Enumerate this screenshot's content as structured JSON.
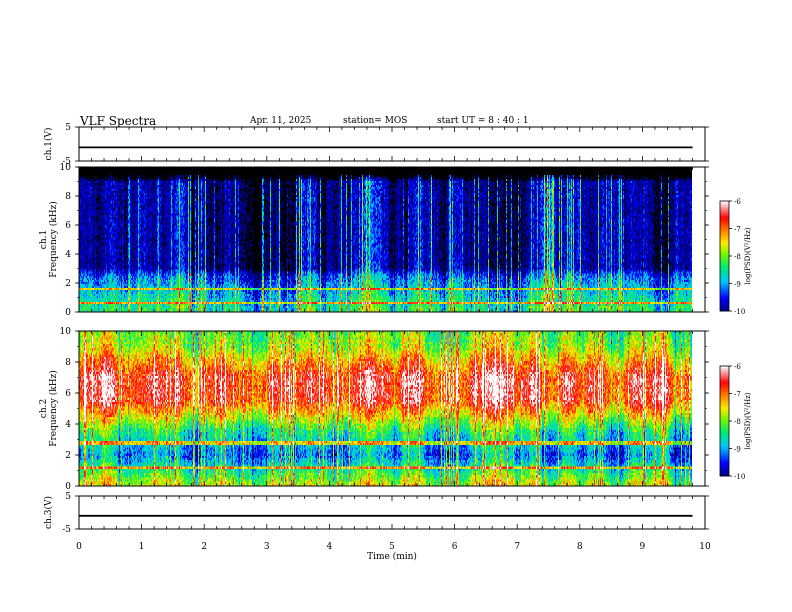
{
  "header": {
    "title": "VLF Spectra",
    "date": "Apr. 11, 2025",
    "station": "station= MOS",
    "start": "start  UT =   8 : 40 : 1"
  },
  "chart_data": [
    {
      "type": "line",
      "panel": "ch1-voltage",
      "ylabel": "ch.1(V)",
      "ylim": [
        -5,
        5
      ],
      "yticks": [
        "5",
        "-5"
      ],
      "x": [
        0,
        9.8
      ],
      "values": [
        -1,
        -1
      ],
      "color": "#000000"
    },
    {
      "type": "heatmap",
      "panel": "ch1-spectrogram",
      "ylabel": "ch.1\nFrequency (kHz)",
      "ylim": [
        0,
        10
      ],
      "yticks": [
        "0",
        "2",
        "4",
        "6",
        "8",
        "10"
      ],
      "xlim": [
        0,
        10
      ],
      "data_end_min": 9.8,
      "colorbar": {
        "label": "log(PSD)(V²/Hz)",
        "range": [
          -10,
          -6
        ],
        "ticks": [
          "-6",
          "-7",
          "-8",
          "-9",
          "-10"
        ]
      },
      "profile": {
        "base": [
          [
            0,
            -8.4
          ],
          [
            0.7,
            -8.6
          ],
          [
            2.5,
            -9.3
          ],
          [
            3.0,
            -10
          ],
          [
            9,
            -10
          ],
          [
            9.3,
            -11
          ]
        ],
        "flat_lines_khz": [
          0.6,
          1.6
        ]
      }
    },
    {
      "type": "heatmap",
      "panel": "ch2-spectrogram",
      "ylabel": "ch.2\nFrequency (kHz)",
      "ylim": [
        0,
        10
      ],
      "yticks": [
        "0",
        "2",
        "4",
        "6",
        "8",
        "10"
      ],
      "xlim": [
        0,
        10
      ],
      "data_end_min": 9.8,
      "colorbar": {
        "label": "log(PSD)(V²/Hz)",
        "range": [
          -10,
          -6
        ],
        "ticks": [
          "-6",
          "-7",
          "-8",
          "-9",
          "-10"
        ]
      },
      "profile": {
        "base": [
          [
            0,
            -7.7
          ],
          [
            0.8,
            -8.3
          ],
          [
            2.0,
            -9.2
          ],
          [
            3.5,
            -8.5
          ],
          [
            4.5,
            -7.6
          ],
          [
            5.5,
            -6.7
          ],
          [
            7.0,
            -6.6
          ],
          [
            8.0,
            -7.2
          ],
          [
            9.0,
            -7.9
          ],
          [
            10,
            -8.1
          ]
        ],
        "flat_lines_khz": [
          1.2,
          2.8
        ]
      }
    },
    {
      "type": "line",
      "panel": "ch3-voltage",
      "ylabel": "ch.3(V)",
      "ylim": [
        -5,
        5
      ],
      "yticks": [
        "5",
        "-5"
      ],
      "x": [
        0,
        9.8
      ],
      "values": [
        -1,
        -1
      ],
      "color": "#000000"
    }
  ],
  "xaxis": {
    "label": "Time (min)",
    "ticks": [
      "0",
      "1",
      "2",
      "3",
      "4",
      "5",
      "6",
      "7",
      "8",
      "9",
      "10"
    ],
    "range": [
      0,
      10
    ]
  }
}
